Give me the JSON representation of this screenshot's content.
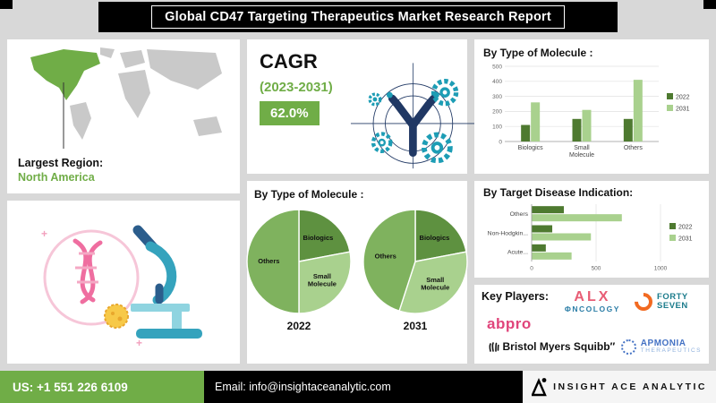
{
  "header": {
    "title": "Global CD47 Targeting Therapeutics Market Research Report"
  },
  "map": {
    "region_label": "Largest Region:",
    "region_value": "North America"
  },
  "cagr": {
    "label": "CAGR",
    "period": "(2023-2031)",
    "value": "62.0%"
  },
  "colors": {
    "accent_green": "#70AD47",
    "series_2022": "#4e7a30",
    "series_2031": "#a9d18e",
    "teal": "#1d9db5",
    "navy": "#203864"
  },
  "chart_data": [
    {
      "type": "bar",
      "title": "By Type of Molecule :",
      "categories": [
        "Biologics",
        "Small Molecule",
        "Others"
      ],
      "series": [
        {
          "name": "2022",
          "color": "#4e7a30",
          "values": [
            110,
            150,
            150
          ]
        },
        {
          "name": "2031",
          "color": "#a9d18e",
          "values": [
            260,
            210,
            410
          ]
        }
      ],
      "ylim": [
        0,
        500
      ],
      "yticks": [
        0,
        100,
        200,
        300,
        400,
        500
      ],
      "legend_position": "right",
      "grid": true
    },
    {
      "type": "pie",
      "title": "By Type of Molecule :",
      "slice_colors": {
        "Biologics": "#5e9140",
        "Small Molecule": "#a9d18e",
        "Others": "#7fb25e"
      },
      "pies": [
        {
          "label": "2022",
          "slices": [
            {
              "name": "Biologics",
              "value": 22
            },
            {
              "name": "Small Molecule",
              "value": 28
            },
            {
              "name": "Others",
              "value": 50
            }
          ]
        },
        {
          "label": "2031",
          "slices": [
            {
              "name": "Biologics",
              "value": 22
            },
            {
              "name": "Small Molecule",
              "value": 33
            },
            {
              "name": "Others",
              "value": 45
            }
          ]
        }
      ]
    },
    {
      "type": "bar-horizontal",
      "title": "By Target Disease Indication:",
      "categories": [
        "Others",
        "Non-Hodgkin...",
        "Acute..."
      ],
      "series": [
        {
          "name": "2022",
          "color": "#4e7a30",
          "values": [
            250,
            160,
            110
          ]
        },
        {
          "name": "2031",
          "color": "#a9d18e",
          "values": [
            700,
            460,
            310
          ]
        }
      ],
      "xlim": [
        0,
        1000
      ],
      "xticks": [
        0,
        500,
        1000
      ],
      "legend_position": "right",
      "grid": true
    }
  ],
  "key_players": {
    "title": "Key Players:",
    "abpro": "abpro",
    "alx_top": "ALX",
    "alx_bottom": "ΦNCOLOGY",
    "forty_line1": "FORTY",
    "forty_line2": "SEVEN",
    "bms": "Bristol Myers Squibb″",
    "apmonia_line1": "APMONIA",
    "apmonia_line2": "THERAPEUTICS"
  },
  "footer": {
    "phone": "US: +1 551 226 6109",
    "email": "Email: info@insightaceanalytic.com",
    "brand": "INSIGHT ACE ANALYTIC"
  }
}
